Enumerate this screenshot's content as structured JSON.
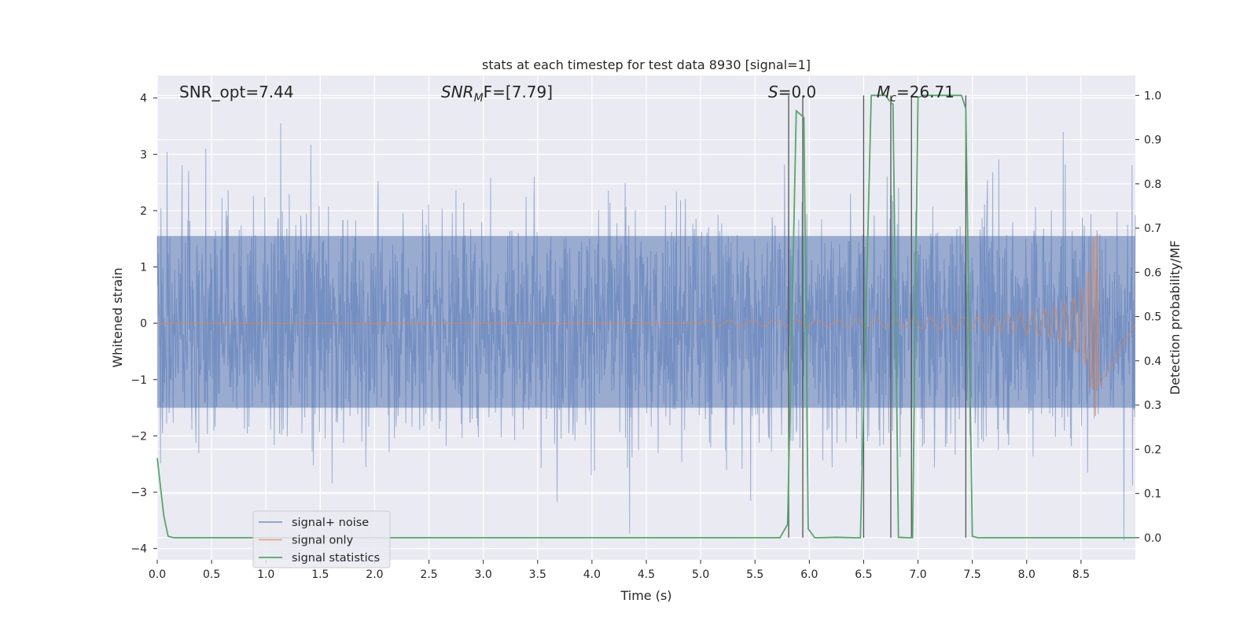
{
  "chart_data": {
    "type": "line",
    "title": "stats at each timestep for test data 8930 [signal=1]",
    "xlabel": "Time (s)",
    "ylabel_left": "Whitened strain",
    "ylabel_right": "Detection probability/MF",
    "xlim": [
      0.0,
      9.0
    ],
    "ylim_left": [
      -4.2,
      4.4
    ],
    "ylim_right": [
      -0.05,
      1.045
    ],
    "x_ticks": [
      "0.0",
      "0.5",
      "1.0",
      "1.5",
      "2.0",
      "2.5",
      "3.0",
      "3.5",
      "4.0",
      "4.5",
      "5.0",
      "5.5",
      "6.0",
      "6.5",
      "7.0",
      "7.5",
      "8.0",
      "8.5"
    ],
    "y_ticks_left": [
      "4",
      "3",
      "2",
      "1",
      "0",
      "−1",
      "−2",
      "−3",
      "−4"
    ],
    "y_ticks_right": [
      "1.0",
      "0.9",
      "0.8",
      "0.7",
      "0.6",
      "0.5",
      "0.4",
      "0.3",
      "0.2",
      "0.1",
      "0.0"
    ],
    "grid": true,
    "annotations": [
      {
        "name": "snr-opt",
        "prefix": "SNR_opt=7.44",
        "sub": "",
        "suffix": ""
      },
      {
        "name": "snr-mf",
        "prefix": "SNR",
        "sub": "M",
        "suffix": "F=[7.79]"
      },
      {
        "name": "s-value",
        "prefix": "S",
        "sub": "",
        "suffix": "=0.0"
      },
      {
        "name": "chirp-mass",
        "prefix": "M",
        "sub": "c",
        "suffix": "=26.71"
      }
    ],
    "legend": {
      "placement": "lower-left",
      "entries": [
        {
          "label": "signal+ noise",
          "color": "#4c72b0"
        },
        {
          "label": "signal only",
          "color": "#dd8452"
        },
        {
          "label": "signal statistics",
          "color": "#55a868"
        }
      ]
    },
    "series": [
      {
        "name": "signal+ noise",
        "color": "#4c72b0",
        "description_values": {
          "typical_amplitude": 1.6,
          "peak_amplitude": 3.6,
          "x_range": [
            0.0,
            9.0
          ]
        }
      },
      {
        "name": "signal only",
        "color": "#dd8452",
        "chirp": {
          "start_x": 5.0,
          "end_x": 8.66,
          "start_amplitude": 0.05,
          "peak_amplitude": 1.65
        }
      },
      {
        "name": "signal statistics",
        "color": "#55a868",
        "x": [
          0.0,
          0.06,
          0.1,
          0.15,
          0.3,
          1.0,
          3.0,
          5.0,
          5.6,
          5.73,
          5.8,
          5.88,
          5.95,
          5.99,
          6.05,
          6.1,
          6.25,
          6.4,
          6.47,
          6.57,
          6.62,
          6.7,
          6.73,
          6.77,
          6.82,
          6.9,
          6.95,
          7.0,
          7.05,
          7.3,
          7.4,
          7.44,
          7.5,
          7.55,
          7.65,
          8.0,
          8.5,
          9.0
        ],
        "y": [
          0.18,
          0.05,
          0.003,
          0.0,
          0.0,
          0.0,
          0.0,
          0.0,
          0.0,
          0.0,
          0.03,
          0.965,
          0.95,
          0.02,
          0.0,
          0.0,
          0.001,
          0.0,
          0.0,
          1.0,
          1.0,
          1.0,
          0.99,
          0.98,
          0.001,
          0.0,
          0.0,
          0.995,
          1.0,
          1.0,
          1.0,
          0.97,
          0.003,
          0.0,
          0.0,
          0.0,
          0.0,
          0.0
        ]
      }
    ],
    "vertical_lines": {
      "color": "#555555",
      "x": [
        5.81,
        5.94,
        6.5,
        6.75,
        6.94,
        7.44
      ],
      "y_range": [
        0.0,
        1.0
      ]
    }
  }
}
